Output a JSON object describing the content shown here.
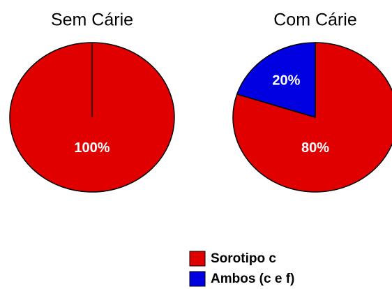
{
  "chart_data": [
    {
      "type": "pie",
      "title": "Sem Cárie",
      "values": [
        100
      ],
      "value_labels": [
        "100%"
      ],
      "colors": [
        "#e00000"
      ]
    },
    {
      "type": "pie",
      "title": "Com Cárie",
      "categories": [
        "Sorotipo c",
        "Ambos (c e f)"
      ],
      "values": [
        80,
        20
      ],
      "value_labels": [
        "80%",
        "20%"
      ],
      "colors": [
        "#e00000",
        "#0000e0"
      ]
    }
  ]
}
